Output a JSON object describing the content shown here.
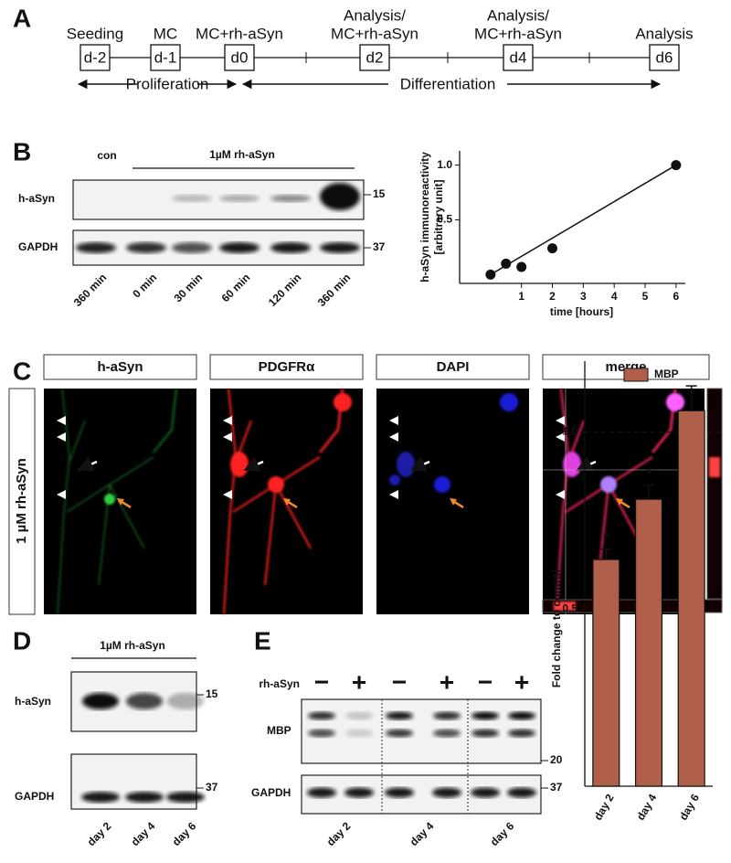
{
  "panel_labels": [
    "A",
    "B",
    "C",
    "D",
    "E"
  ],
  "timeline": {
    "stages": [
      {
        "label": [
          "Seeding"
        ],
        "day": "d-2"
      },
      {
        "label": [
          "MC"
        ],
        "day": "d-1"
      },
      {
        "label": [
          "MC+rh-aSyn"
        ],
        "day": "d0"
      },
      {
        "label": [
          "Analysis/",
          "MC+rh-aSyn"
        ],
        "day": "d2"
      },
      {
        "label": [
          "Analysis/",
          "MC+rh-aSyn"
        ],
        "day": "d4"
      },
      {
        "label": [
          "Analysis"
        ],
        "day": "d6"
      }
    ],
    "phases": [
      "Proliferation",
      "Differentiation"
    ]
  },
  "blot_b": {
    "control": "con",
    "treatment": "1µM rh-aSyn",
    "rows": [
      "h-aSyn",
      "GAPDH"
    ],
    "markers": [
      "15",
      "37"
    ],
    "lanes": [
      "360 min",
      "0 min",
      "30 min",
      "60 min",
      "120 min",
      "360 min"
    ]
  },
  "panel_c": {
    "condition": "1 µM rh-aSyn",
    "channels": [
      {
        "label": "h-aSyn",
        "color": "#1e9a3c"
      },
      {
        "label": "PDGFRα",
        "color": "#e3211c"
      },
      {
        "label": "DAPI",
        "color": "#1a1a96"
      },
      {
        "label": "merge",
        "color": "#111111"
      }
    ]
  },
  "blot_d": {
    "treatment": "1µM rh-aSyn",
    "rows": [
      "h-aSyn",
      "GAPDH"
    ],
    "markers": [
      "15",
      "37"
    ],
    "lanes": [
      "day 2",
      "day 4",
      "day 6"
    ]
  },
  "blot_e": {
    "treatment": "rh-aSyn",
    "signs": [
      "−",
      "+",
      "−",
      "+",
      "−",
      "+"
    ],
    "rows": [
      "MBP",
      "GAPDH"
    ],
    "markers": [
      "20",
      "37"
    ],
    "lanes": [
      "day 2",
      "day 4",
      "day 6"
    ]
  },
  "chart_data": [
    {
      "type": "scatter",
      "xlabel": "time [hours]",
      "ylabel": [
        "h-aSyn immunoreactivity",
        "[arbitrary unit]"
      ],
      "x": [
        0,
        0.5,
        1,
        2,
        6
      ],
      "values": [
        0,
        0.1,
        0.07,
        0.24,
        1.0
      ],
      "fit": {
        "x": [
          0,
          6
        ],
        "values": [
          0,
          1.0
        ]
      },
      "xlim": [
        -1,
        6.3
      ],
      "ylim": [
        -0.08,
        1.13
      ],
      "xticks": [
        1,
        2,
        3,
        4,
        5,
        6
      ],
      "yticks": [
        0.5,
        {
          "value": 1,
          "label": "1.0"
        }
      ],
      "color": "#111111"
    },
    {
      "type": "bar",
      "ylabel": "Fold change to control",
      "categories": [
        "day 2",
        "day 4",
        "day 6"
      ],
      "series": [
        {
          "name": "MBP",
          "color": "#b0604a",
          "values": [
            0.64,
            0.81,
            1.06
          ],
          "errors": [
            0.03,
            0.04,
            0.07
          ]
        }
      ],
      "significance": [
        "*",
        "*",
        null
      ],
      "reference": 1,
      "ylim": [
        0,
        1.2
      ],
      "yticks": [
        0.5,
        {
          "value": 1,
          "label": "1.0"
        }
      ],
      "legend": "top"
    }
  ]
}
